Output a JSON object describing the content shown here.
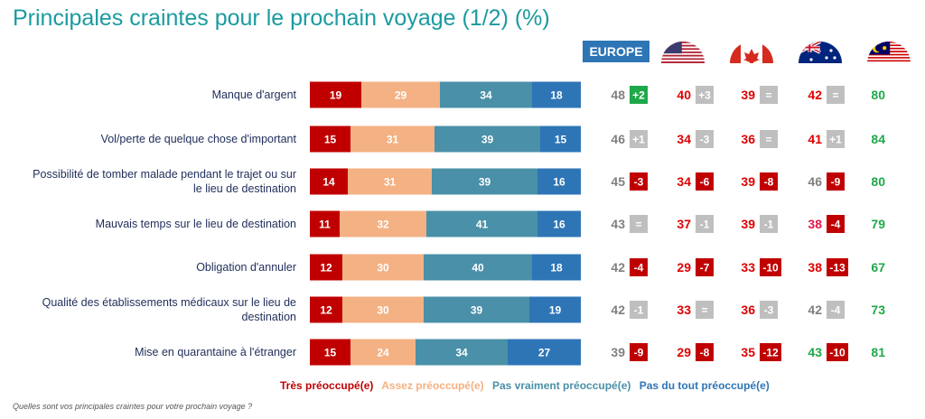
{
  "title": "Principales craintes pour le prochain voyage (1/2) (%)",
  "question": "Quelles sont vos principales craintes pour votre prochain voyage ?",
  "colors": {
    "tres": "#c00000",
    "assez": "#f4b183",
    "pasvraiment": "#4a90a8",
    "pasdutout": "#2e75b6",
    "increase": "#1fa84a",
    "decrease": "#c00000",
    "neutral": "#bfbfbf",
    "value_grey": "#808080",
    "value_red": "#e00000",
    "value_pink": "#e8174f",
    "value_green": "#1fa84a",
    "europe_badge": "#2e75b6"
  },
  "columns": [
    {
      "key": "europe",
      "label": "EUROPE",
      "icon": "europe-badge"
    },
    {
      "key": "usa",
      "label": "",
      "icon": "usa-flag-icon"
    },
    {
      "key": "canada",
      "label": "",
      "icon": "canada-flag-icon"
    },
    {
      "key": "australia",
      "label": "",
      "icon": "australia-flag-icon"
    },
    {
      "key": "malaysia",
      "label": "",
      "icon": "malaysia-flag-icon"
    }
  ],
  "chart_data": {
    "type": "bar",
    "stacked": true,
    "orientation": "horizontal",
    "categories": [
      "Manque d'argent",
      "Vol/perte de quelque chose d'important",
      "Possibilité de tomber malade pendant le trajet ou sur le lieu de destination",
      "Mauvais temps sur le lieu de destination",
      "Obligation d'annuler",
      "Qualité des établissements médicaux sur le lieu de destination",
      "Mise en quarantaine à l'étranger"
    ],
    "series": [
      {
        "name": "Très préoccupé(e)",
        "color": "#c00000",
        "values": [
          19,
          15,
          14,
          11,
          12,
          12,
          15
        ]
      },
      {
        "name": "Assez préoccupé(e)",
        "color": "#f4b183",
        "values": [
          29,
          31,
          31,
          32,
          30,
          30,
          24
        ]
      },
      {
        "name": "Pas vraiment préoccupé(e)",
        "color": "#4a90a8",
        "values": [
          34,
          39,
          39,
          41,
          40,
          39,
          34
        ]
      },
      {
        "name": "Pas du tout préoccupé(e)",
        "color": "#2e75b6",
        "values": [
          18,
          15,
          16,
          16,
          18,
          19,
          27
        ]
      }
    ],
    "legend_position": "bottom",
    "country_values": [
      [
        {
          "value": "48",
          "delta": "+2"
        },
        {
          "value": "40",
          "delta": "+3"
        },
        {
          "value": "39",
          "delta": "="
        },
        {
          "value": "42",
          "delta": "="
        },
        {
          "value": "80",
          "delta": ""
        }
      ],
      [
        {
          "value": "46",
          "delta": "+1"
        },
        {
          "value": "34",
          "delta": "-3"
        },
        {
          "value": "36",
          "delta": "="
        },
        {
          "value": "41",
          "delta": "+1"
        },
        {
          "value": "84",
          "delta": ""
        }
      ],
      [
        {
          "value": "45",
          "delta": "-3"
        },
        {
          "value": "34",
          "delta": "-6"
        },
        {
          "value": "39",
          "delta": "-8"
        },
        {
          "value": "46",
          "delta": "-9"
        },
        {
          "value": "80",
          "delta": ""
        }
      ],
      [
        {
          "value": "43",
          "delta": "="
        },
        {
          "value": "37",
          "delta": "-1"
        },
        {
          "value": "39",
          "delta": "-1"
        },
        {
          "value": "38",
          "delta": "-4"
        },
        {
          "value": "79",
          "delta": ""
        }
      ],
      [
        {
          "value": "42",
          "delta": "-4"
        },
        {
          "value": "29",
          "delta": "-7"
        },
        {
          "value": "33",
          "delta": "-10"
        },
        {
          "value": "38",
          "delta": "-13"
        },
        {
          "value": "67",
          "delta": ""
        }
      ],
      [
        {
          "value": "42",
          "delta": "-1"
        },
        {
          "value": "33",
          "delta": "="
        },
        {
          "value": "36",
          "delta": "-3"
        },
        {
          "value": "42",
          "delta": "-4"
        },
        {
          "value": "73",
          "delta": ""
        }
      ],
      [
        {
          "value": "39",
          "delta": "-9"
        },
        {
          "value": "29",
          "delta": "-8"
        },
        {
          "value": "35",
          "delta": "-12"
        },
        {
          "value": "43",
          "delta": "-10"
        },
        {
          "value": "81",
          "delta": ""
        }
      ]
    ],
    "value_colors": [
      [
        "grey",
        "red",
        "red",
        "red",
        "green"
      ],
      [
        "grey",
        "red",
        "red",
        "red",
        "green"
      ],
      [
        "grey",
        "red",
        "red",
        "grey",
        "green"
      ],
      [
        "grey",
        "red",
        "red",
        "pink",
        "green"
      ],
      [
        "grey",
        "red",
        "red",
        "red",
        "green"
      ],
      [
        "grey",
        "red",
        "red",
        "grey",
        "green"
      ],
      [
        "grey",
        "red",
        "red",
        "green",
        "green"
      ]
    ],
    "delta_styles": [
      [
        "increase",
        "neutral",
        "neutral",
        "neutral",
        ""
      ],
      [
        "neutral",
        "neutral",
        "neutral",
        "neutral",
        ""
      ],
      [
        "decrease",
        "decrease",
        "decrease",
        "decrease",
        ""
      ],
      [
        "neutral",
        "neutral",
        "neutral",
        "decrease",
        ""
      ],
      [
        "decrease",
        "decrease",
        "decrease",
        "decrease",
        ""
      ],
      [
        "neutral",
        "neutral",
        "neutral",
        "neutral",
        ""
      ],
      [
        "decrease",
        "decrease",
        "decrease",
        "decrease",
        ""
      ]
    ]
  }
}
